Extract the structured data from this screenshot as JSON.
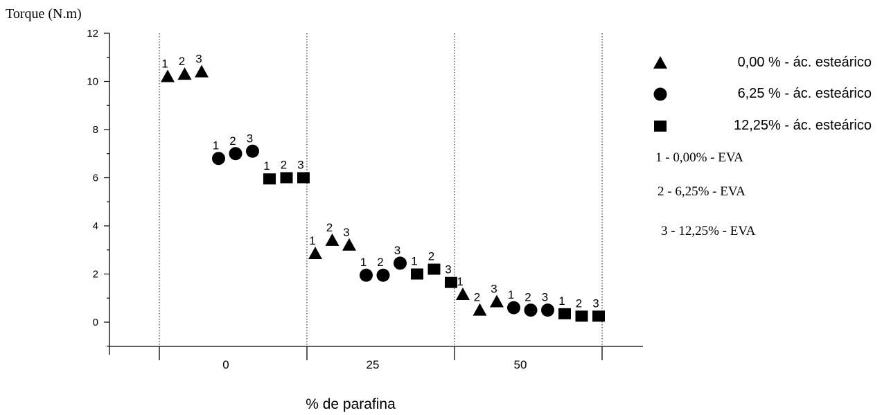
{
  "chart_data": {
    "type": "scatter",
    "ylabel": "Torque (N.m)",
    "xlabel": "% de parafina",
    "ylim": [
      -1,
      12
    ],
    "y_ticks": [
      "0",
      "2",
      "4",
      "6",
      "8",
      "10",
      "12"
    ],
    "groups": [
      "0",
      "25",
      "50"
    ],
    "grid": "vertical dotted separators between groups",
    "legend_position": "right",
    "series": [
      {
        "name": "0,00 % - ác. esteárico",
        "marker": "triangle",
        "points": [
          {
            "group": "0",
            "label": "1",
            "y": 10.2
          },
          {
            "group": "0",
            "label": "2",
            "y": 10.3
          },
          {
            "group": "0",
            "label": "3",
            "y": 10.4
          },
          {
            "group": "25",
            "label": "1",
            "y": 2.85
          },
          {
            "group": "25",
            "label": "2",
            "y": 3.4
          },
          {
            "group": "25",
            "label": "3",
            "y": 3.2
          },
          {
            "group": "50",
            "label": "1",
            "y": 1.15
          },
          {
            "group": "50",
            "label": "2",
            "y": 0.5
          },
          {
            "group": "50",
            "label": "3",
            "y": 0.85
          }
        ]
      },
      {
        "name": "6,25 % - ác. esteárico",
        "marker": "circle",
        "points": [
          {
            "group": "0",
            "label": "1",
            "y": 6.8
          },
          {
            "group": "0",
            "label": "2",
            "y": 7.0
          },
          {
            "group": "0",
            "label": "3",
            "y": 7.1
          },
          {
            "group": "25",
            "label": "1",
            "y": 1.95
          },
          {
            "group": "25",
            "label": "2",
            "y": 1.95
          },
          {
            "group": "25",
            "label": "3",
            "y": 2.45
          },
          {
            "group": "50",
            "label": "1",
            "y": 0.6
          },
          {
            "group": "50",
            "label": "2",
            "y": 0.5
          },
          {
            "group": "50",
            "label": "3",
            "y": 0.5
          }
        ]
      },
      {
        "name": "12,25% - ác. esteárico",
        "marker": "square",
        "points": [
          {
            "group": "0",
            "label": "1",
            "y": 5.95
          },
          {
            "group": "0",
            "label": "2",
            "y": 6.0
          },
          {
            "group": "0",
            "label": "3",
            "y": 6.0
          },
          {
            "group": "25",
            "label": "1",
            "y": 2.0
          },
          {
            "group": "25",
            "label": "2",
            "y": 2.2
          },
          {
            "group": "25",
            "label": "3",
            "y": 1.65
          },
          {
            "group": "50",
            "label": "1",
            "y": 0.35
          },
          {
            "group": "50",
            "label": "2",
            "y": 0.25
          },
          {
            "group": "50",
            "label": "3",
            "y": 0.25
          }
        ]
      }
    ],
    "legend_notes": [
      "1  -  0,00% - EVA",
      "2  -  6,25% - EVA",
      "3  -  12,25% - EVA"
    ],
    "color": "#000000"
  }
}
